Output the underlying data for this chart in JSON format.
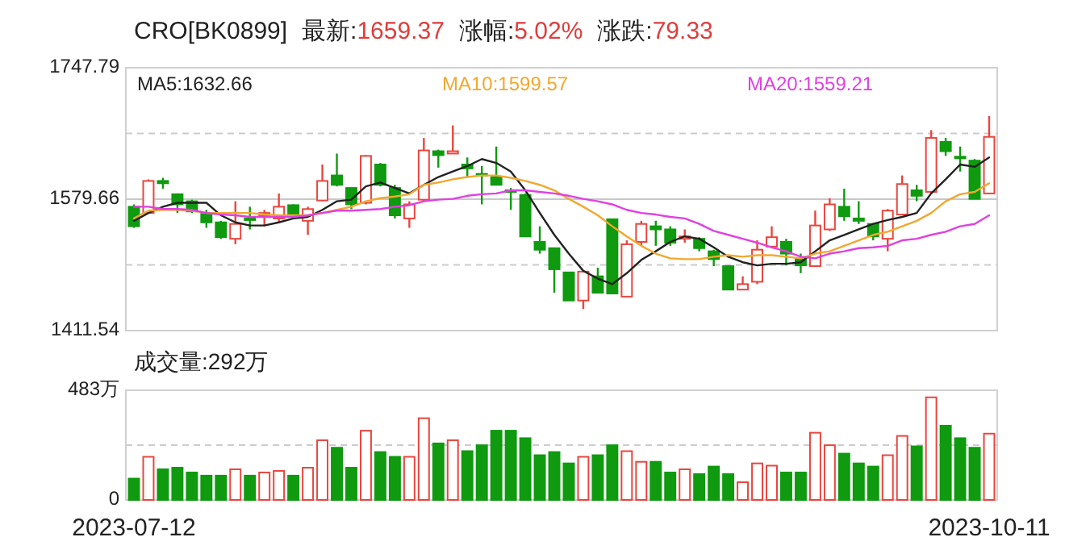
{
  "chart_data": [
    {
      "type": "candlestick",
      "title": "CRO[BK0899]",
      "annotations": [
        "最新:1659.37",
        "涨幅:5.02%",
        "涨跌:79.33"
      ],
      "categories": [
        null,
        null,
        null,
        null,
        null,
        null,
        null,
        null,
        null,
        null,
        null,
        null,
        null,
        null,
        null,
        null,
        null,
        null,
        null,
        null,
        null,
        null,
        null,
        null,
        null,
        null,
        null,
        null,
        null,
        null,
        null,
        null,
        null,
        null,
        null,
        null,
        null,
        null,
        null,
        null,
        null,
        null,
        null,
        null,
        null,
        null,
        null,
        null,
        null,
        null,
        null,
        null,
        null,
        null,
        null,
        null,
        null,
        null,
        null,
        null
      ],
      "ohlc": [
        [
          1570,
          1573,
          1543,
          1545
        ],
        [
          1562,
          1605,
          1561,
          1603
        ],
        [
          1603,
          1607,
          1593,
          1600
        ],
        [
          1586,
          1587,
          1562,
          1573
        ],
        [
          1577,
          1579,
          1562,
          1564
        ],
        [
          1561,
          1566,
          1543,
          1550
        ],
        [
          1550,
          1552,
          1529,
          1531
        ],
        [
          1529,
          1577,
          1522,
          1548
        ],
        [
          1555,
          1570,
          1541,
          1553
        ],
        [
          1558,
          1566,
          1545,
          1562
        ],
        [
          1555,
          1587,
          1550,
          1570
        ],
        [
          1572,
          1573,
          1555,
          1558
        ],
        [
          1552,
          1570,
          1534,
          1567
        ],
        [
          1578,
          1624,
          1577,
          1603
        ],
        [
          1610,
          1638,
          1596,
          1598
        ],
        [
          1594,
          1594,
          1567,
          1573
        ],
        [
          1575,
          1636,
          1573,
          1635
        ],
        [
          1624,
          1626,
          1596,
          1598
        ],
        [
          1594,
          1598,
          1555,
          1559
        ],
        [
          1555,
          1577,
          1543,
          1573
        ],
        [
          1579,
          1658,
          1577,
          1642
        ],
        [
          1641,
          1643,
          1620,
          1636
        ],
        [
          1638,
          1674,
          1638,
          1641
        ],
        [
          1624,
          1633,
          1608,
          1619
        ],
        [
          1612,
          1622,
          1573,
          1610
        ],
        [
          1608,
          1647,
          1598,
          1598
        ],
        [
          1591,
          1594,
          1566,
          1589
        ],
        [
          1585,
          1587,
          1532,
          1532
        ],
        [
          1525,
          1545,
          1510,
          1515
        ],
        [
          1517,
          1517,
          1460,
          1490
        ],
        [
          1486,
          1486,
          1450,
          1450
        ],
        [
          1450,
          1488,
          1439,
          1487
        ],
        [
          1481,
          1492,
          1459,
          1460
        ],
        [
          1554,
          1554,
          1459,
          1459
        ],
        [
          1455,
          1527,
          1455,
          1522
        ],
        [
          1525,
          1552,
          1520,
          1548
        ],
        [
          1545,
          1552,
          1520,
          1541
        ],
        [
          1541,
          1545,
          1520,
          1524
        ],
        [
          1529,
          1541,
          1524,
          1532
        ],
        [
          1529,
          1531,
          1513,
          1517
        ],
        [
          1513,
          1515,
          1494,
          1503
        ],
        [
          1494,
          1495,
          1464,
          1464
        ],
        [
          1464,
          1481,
          1464,
          1471
        ],
        [
          1474,
          1527,
          1471,
          1515
        ],
        [
          1519,
          1545,
          1517,
          1531
        ],
        [
          1525,
          1529,
          1495,
          1510
        ],
        [
          1503,
          1510,
          1485,
          1495
        ],
        [
          1494,
          1565,
          1494,
          1546
        ],
        [
          1541,
          1581,
          1539,
          1573
        ],
        [
          1570,
          1593,
          1552,
          1558
        ],
        [
          1555,
          1577,
          1548,
          1552
        ],
        [
          1548,
          1548,
          1527,
          1532
        ],
        [
          1529,
          1567,
          1513,
          1565
        ],
        [
          1560,
          1610,
          1559,
          1599
        ],
        [
          1591,
          1598,
          1577,
          1584
        ],
        [
          1589,
          1668,
          1587,
          1658
        ],
        [
          1653,
          1658,
          1635,
          1641
        ],
        [
          1634,
          1647,
          1615,
          1632
        ],
        [
          1629,
          1631,
          1580,
          1580
        ],
        [
          1587,
          1686,
          1586,
          1659.37
        ]
      ],
      "colors": [
        "#0f9a0f",
        "#e8463f",
        "#0f9a0f",
        "#0f9a0f",
        "#0f9a0f",
        "#0f9a0f",
        "#0f9a0f",
        "#e8463f",
        "#0f9a0f",
        "#e8463f",
        "#e8463f",
        "#0f9a0f",
        "#e8463f",
        "#e8463f",
        "#0f9a0f",
        "#0f9a0f",
        "#e8463f",
        "#0f9a0f",
        "#0f9a0f",
        "#e8463f",
        "#e8463f",
        "#0f9a0f",
        "#e8463f",
        "#0f9a0f",
        "#0f9a0f",
        "#0f9a0f",
        "#0f9a0f",
        "#0f9a0f",
        "#0f9a0f",
        "#0f9a0f",
        "#0f9a0f",
        "#e8463f",
        "#0f9a0f",
        "#0f9a0f",
        "#e8463f",
        "#e8463f",
        "#0f9a0f",
        "#0f9a0f",
        "#e8463f",
        "#0f9a0f",
        "#0f9a0f",
        "#0f9a0f",
        "#e8463f",
        "#e8463f",
        "#e8463f",
        "#0f9a0f",
        "#0f9a0f",
        "#e8463f",
        "#e8463f",
        "#0f9a0f",
        "#0f9a0f",
        "#0f9a0f",
        "#e8463f",
        "#e8463f",
        "#0f9a0f",
        "#e8463f",
        "#0f9a0f",
        "#0f9a0f",
        "#0f9a0f",
        "#e8463f"
      ],
      "series": [
        {
          "type": "line",
          "name": "MA5:1632.66",
          "color": "#222222",
          "values": [
            1552,
            1562,
            1570,
            1575,
            1575,
            1575,
            1559,
            1550,
            1546,
            1546,
            1550,
            1555,
            1557,
            1566,
            1577,
            1579,
            1596,
            1601,
            1594,
            1587,
            1598,
            1608,
            1615,
            1622,
            1631,
            1626,
            1615,
            1591,
            1562,
            1534,
            1510,
            1488,
            1478,
            1471,
            1485,
            1502,
            1513,
            1525,
            1532,
            1529,
            1518,
            1506,
            1499,
            1495,
            1497,
            1497,
            1499,
            1513,
            1527,
            1534,
            1541,
            1548,
            1553,
            1557,
            1562,
            1587,
            1605,
            1624,
            1621,
            1633
          ]
        },
        {
          "type": "line",
          "name": "MA10:1599.57",
          "color": "#f0a830",
          "values": [
            1555,
            1565,
            1566,
            1566,
            1565,
            1562,
            1562,
            1562,
            1562,
            1560,
            1559,
            1559,
            1559,
            1562,
            1566,
            1570,
            1577,
            1581,
            1583,
            1586,
            1598,
            1601,
            1605,
            1608,
            1610,
            1610,
            1607,
            1603,
            1598,
            1591,
            1580,
            1570,
            1559,
            1545,
            1532,
            1520,
            1510,
            1504,
            1503,
            1503,
            1506,
            1508,
            1506,
            1508,
            1508,
            1506,
            1504,
            1510,
            1513,
            1520,
            1527,
            1534,
            1538,
            1545,
            1552,
            1562,
            1577,
            1586,
            1589,
            1600
          ]
        },
        {
          "type": "line",
          "name": "MA20:1559.21",
          "color": "#e040e0",
          "values": [
            1570,
            1570,
            1567,
            1567,
            1566,
            1562,
            1560,
            1559,
            1557,
            1557,
            1557,
            1557,
            1559,
            1562,
            1565,
            1565,
            1566,
            1567,
            1570,
            1572,
            1577,
            1579,
            1580,
            1584,
            1586,
            1587,
            1591,
            1591,
            1589,
            1587,
            1584,
            1580,
            1577,
            1573,
            1566,
            1562,
            1560,
            1557,
            1555,
            1548,
            1539,
            1534,
            1529,
            1524,
            1518,
            1513,
            1506,
            1504,
            1510,
            1513,
            1517,
            1518,
            1520,
            1527,
            1529,
            1534,
            1538,
            1545,
            1548,
            1559
          ]
        }
      ],
      "ylim": [
        1411.54,
        1747.79
      ],
      "yticks": [
        1411.54,
        {
          "value": 1495.6,
          "label": null
        },
        1579.66,
        {
          "value": 1663.73,
          "label": null
        },
        1747.79
      ],
      "ref_lines": [
        {
          "axis": "y",
          "value": 1579.66,
          "color": "#c8c8c8",
          "line_style": "solid"
        }
      ],
      "grid": true,
      "legend": "top",
      "tick_labels": "y"
    },
    {
      "type": "bar",
      "title": "成交量:292万",
      "categories": [
        "2023-07-12",
        null,
        null,
        null,
        null,
        null,
        null,
        null,
        null,
        null,
        null,
        null,
        null,
        null,
        null,
        null,
        null,
        null,
        null,
        null,
        null,
        null,
        null,
        null,
        null,
        null,
        null,
        null,
        null,
        null,
        null,
        null,
        null,
        null,
        null,
        null,
        null,
        null,
        null,
        null,
        null,
        null,
        null,
        null,
        null,
        null,
        null,
        null,
        null,
        null,
        null,
        null,
        null,
        null,
        null,
        null,
        null,
        null,
        null,
        "2023-10-11"
      ],
      "values": [
        94,
        190,
        135,
        142,
        121,
        107,
        107,
        135,
        107,
        121,
        128,
        107,
        142,
        263,
        230,
        142,
        305,
        211,
        190,
        190,
        360,
        249,
        263,
        215,
        241,
        305,
        305,
        272,
        197,
        211,
        161,
        190,
        197,
        241,
        215,
        168,
        168,
        121,
        135,
        114,
        147,
        114,
        78,
        161,
        151,
        121,
        121,
        296,
        241,
        204,
        161,
        147,
        197,
        282,
        236,
        452,
        327,
        272,
        230,
        292
      ],
      "colors": [
        "#0f9a0f",
        "#e8463f",
        "#0f9a0f",
        "#0f9a0f",
        "#0f9a0f",
        "#0f9a0f",
        "#0f9a0f",
        "#e8463f",
        "#0f9a0f",
        "#e8463f",
        "#e8463f",
        "#0f9a0f",
        "#e8463f",
        "#e8463f",
        "#0f9a0f",
        "#0f9a0f",
        "#e8463f",
        "#0f9a0f",
        "#0f9a0f",
        "#e8463f",
        "#e8463f",
        "#0f9a0f",
        "#e8463f",
        "#0f9a0f",
        "#0f9a0f",
        "#0f9a0f",
        "#0f9a0f",
        "#0f9a0f",
        "#0f9a0f",
        "#0f9a0f",
        "#0f9a0f",
        "#e8463f",
        "#0f9a0f",
        "#0f9a0f",
        "#e8463f",
        "#e8463f",
        "#0f9a0f",
        "#0f9a0f",
        "#e8463f",
        "#0f9a0f",
        "#0f9a0f",
        "#0f9a0f",
        "#e8463f",
        "#e8463f",
        "#e8463f",
        "#0f9a0f",
        "#0f9a0f",
        "#e8463f",
        "#e8463f",
        "#0f9a0f",
        "#0f9a0f",
        "#0f9a0f",
        "#e8463f",
        "#e8463f",
        "#0f9a0f",
        "#e8463f",
        "#0f9a0f",
        "#0f9a0f",
        "#0f9a0f",
        "#e8463f"
      ],
      "ylim": [
        0,
        483
      ],
      "yticks": [
        0,
        {
          "value": 241.5,
          "label": null
        },
        {
          "value": 483,
          "label": "483万"
        }
      ],
      "grid": "y"
    }
  ]
}
